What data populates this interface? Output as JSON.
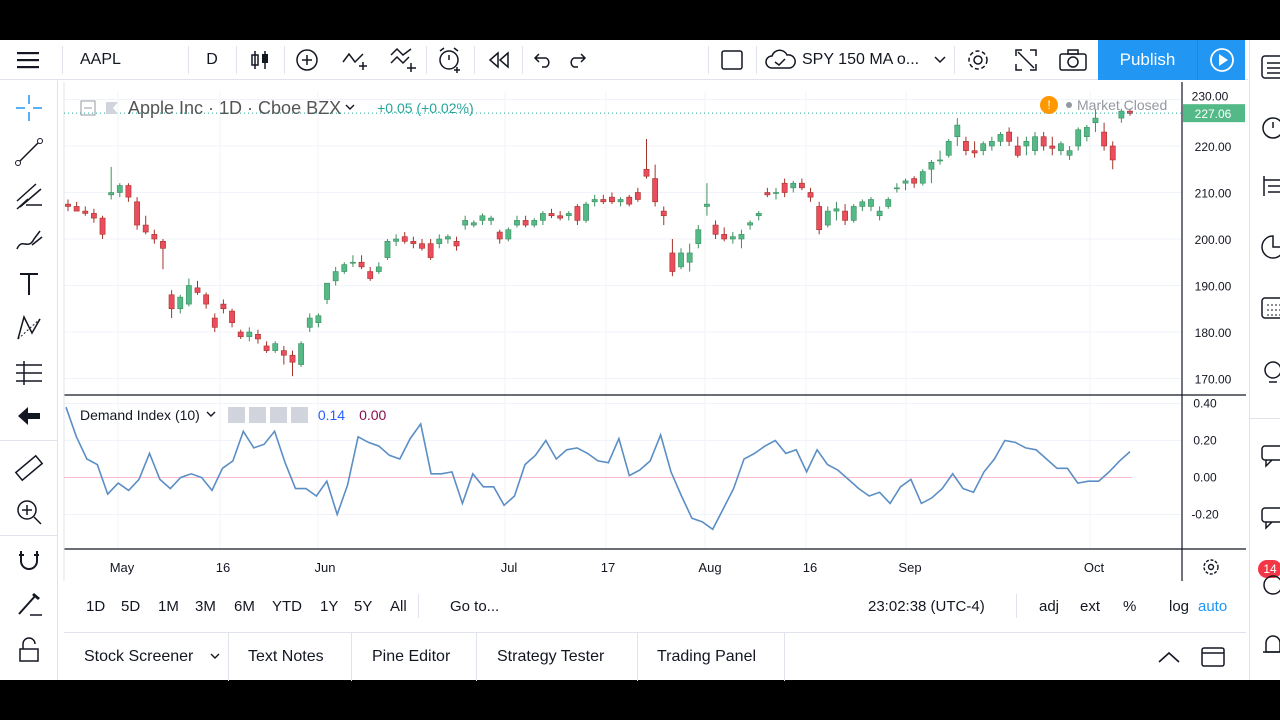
{
  "toolbar": {
    "symbol": "AAPL",
    "interval": "D",
    "compare_label": "SPY 150 MA o...",
    "publish_label": "Publish"
  },
  "legend": {
    "title": "Apple Inc · 1D · Cboe BZX",
    "change": "+0.05 (+0.02%)",
    "market_status": "Market Closed"
  },
  "indicator": {
    "name": "Demand Index (10)",
    "value1": "0.14",
    "value2": "0.00"
  },
  "price_axis": {
    "labels": [
      "230.00",
      "220.00",
      "210.00",
      "200.00",
      "190.00",
      "180.00",
      "170.00"
    ],
    "last_price": "227.06"
  },
  "indicator_axis": {
    "labels": [
      "0.40",
      "0.20",
      "0.00",
      "-0.20"
    ]
  },
  "time_axis": {
    "labels": [
      "May",
      "16",
      "Jun",
      "Jul",
      "17",
      "Aug",
      "16",
      "Sep",
      "Oct"
    ]
  },
  "range_bar": {
    "ranges": [
      "1D",
      "5D",
      "1M",
      "3M",
      "6M",
      "YTD",
      "1Y",
      "5Y",
      "All"
    ],
    "goto": "Go to...",
    "time": "23:02:38 (UTC-4)",
    "options": [
      "adj",
      "ext",
      "%",
      "log",
      "auto"
    ]
  },
  "bottom_tabs": [
    "Stock Screener",
    "Text Notes",
    "Pine Editor",
    "Strategy Tester",
    "Trading Panel"
  ],
  "right_badge": "14",
  "colors": {
    "up": "#26a69a",
    "down": "#ef5350",
    "up_fill": "#53b987",
    "down_fill": "#eb4d5c",
    "accent": "#2196f3",
    "indicator_line": "#5b8ec5"
  },
  "chart_data": {
    "type": "candlestick",
    "x_labels": [
      "May",
      "16",
      "Jun",
      "Jul",
      "17",
      "Aug",
      "16",
      "Sep",
      "Oct"
    ],
    "ylim": [
      168,
      232
    ],
    "candles": [
      [
        207.5,
        208.5,
        206,
        207
      ],
      [
        207,
        208,
        206,
        206
      ],
      [
        206,
        207,
        205,
        205.5
      ],
      [
        205.5,
        206.5,
        203.5,
        204.5
      ],
      [
        204.5,
        205,
        200,
        201
      ],
      [
        209.5,
        215.5,
        208.5,
        210
      ],
      [
        210,
        212,
        209,
        211.5
      ],
      [
        211.5,
        212,
        208,
        209
      ],
      [
        208,
        209,
        202,
        203
      ],
      [
        203,
        205,
        201,
        201.5
      ],
      [
        201,
        202,
        199,
        200
      ],
      [
        199.5,
        200,
        193.5,
        198
      ],
      [
        188,
        189,
        183,
        185
      ],
      [
        185,
        188,
        184,
        187.5
      ],
      [
        186,
        191.5,
        185.5,
        190
      ],
      [
        189.5,
        191,
        188,
        188.5
      ],
      [
        188,
        188.5,
        185,
        186
      ],
      [
        183,
        184,
        180,
        181
      ],
      [
        186,
        187,
        184,
        185
      ],
      [
        184.5,
        185,
        181,
        182
      ],
      [
        180,
        180.5,
        178.5,
        179
      ],
      [
        179,
        181,
        178,
        180
      ],
      [
        179.5,
        180.5,
        177.5,
        178.5
      ],
      [
        177,
        178,
        175.5,
        176
      ],
      [
        176,
        178,
        175.5,
        177.5
      ],
      [
        176,
        177,
        173,
        175
      ],
      [
        175,
        176,
        170.5,
        173.5
      ],
      [
        173,
        178,
        172.5,
        177.5
      ],
      [
        181,
        184,
        180,
        183
      ],
      [
        182,
        184,
        181,
        183.5
      ],
      [
        187,
        190.5,
        186,
        190.5
      ],
      [
        191,
        194,
        190,
        193
      ],
      [
        193,
        195,
        192.5,
        194.5
      ],
      [
        195,
        196.5,
        194,
        195
      ],
      [
        195,
        196.5,
        193.5,
        194
      ],
      [
        193,
        194,
        191,
        191.5
      ],
      [
        193,
        195,
        192.5,
        194
      ],
      [
        196,
        200,
        195.5,
        199.5
      ],
      [
        199.5,
        201,
        198.5,
        200
      ],
      [
        200.5,
        201.5,
        199,
        199.5
      ],
      [
        199.5,
        200.5,
        198,
        199
      ],
      [
        199,
        200,
        197.5,
        198
      ],
      [
        199,
        200,
        195.5,
        196
      ],
      [
        199,
        201,
        198,
        200
      ],
      [
        200,
        201,
        199,
        200.5
      ],
      [
        199.5,
        200.5,
        197.5,
        198.5
      ],
      [
        203,
        205,
        202,
        204
      ],
      [
        203,
        204,
        202.5,
        203.5
      ],
      [
        204,
        205.5,
        203,
        205
      ],
      [
        204,
        205,
        203,
        204.5
      ],
      [
        201.5,
        202,
        199,
        200
      ],
      [
        200,
        202.5,
        199.5,
        202
      ],
      [
        203,
        205,
        202.5,
        204
      ],
      [
        204,
        205,
        202.5,
        203
      ],
      [
        203,
        204.5,
        202.5,
        204
      ],
      [
        204,
        206,
        203,
        205.5
      ],
      [
        205.5,
        206.5,
        204.5,
        205
      ],
      [
        205,
        206,
        204,
        204.5
      ],
      [
        205,
        206,
        204,
        205.5
      ],
      [
        207,
        207.5,
        203,
        204
      ],
      [
        204,
        208,
        203.5,
        207.5
      ],
      [
        208,
        209.5,
        207,
        208.5
      ],
      [
        208.5,
        209.5,
        207.5,
        208
      ],
      [
        209,
        210,
        207.5,
        208
      ],
      [
        208,
        209,
        207,
        208.5
      ],
      [
        209,
        209.5,
        207,
        207.5
      ],
      [
        210,
        211,
        208,
        208.5
      ],
      [
        215,
        221.5,
        213,
        213.5
      ],
      [
        213,
        216,
        207,
        208
      ],
      [
        206,
        207,
        203,
        205
      ],
      [
        197,
        200,
        192,
        193
      ],
      [
        194,
        198,
        193.5,
        197
      ],
      [
        195,
        199,
        193,
        197
      ],
      [
        199,
        203,
        198,
        202
      ],
      [
        207,
        212,
        205,
        207.5
      ],
      [
        203,
        204,
        200,
        201
      ],
      [
        201,
        202.5,
        199.5,
        200
      ],
      [
        200,
        201.5,
        199,
        200.5
      ],
      [
        200,
        202,
        198,
        201
      ],
      [
        203,
        204,
        202,
        203.5
      ],
      [
        205,
        206,
        204,
        205.5
      ],
      [
        210,
        211,
        209,
        209.5
      ],
      [
        210,
        211,
        208.5,
        210
      ],
      [
        212,
        213,
        209,
        210
      ],
      [
        211,
        212.5,
        210,
        212
      ],
      [
        212,
        213,
        210.5,
        211
      ],
      [
        210,
        211,
        208,
        209
      ],
      [
        207,
        208,
        201,
        202
      ],
      [
        203,
        207,
        202.5,
        206
      ],
      [
        206,
        208,
        204,
        206.5
      ],
      [
        206,
        207.5,
        203,
        204
      ],
      [
        204,
        207.5,
        203.5,
        207
      ],
      [
        207,
        208.5,
        206,
        208
      ],
      [
        207,
        209,
        206,
        208.5
      ],
      [
        205,
        207,
        204,
        206
      ],
      [
        207,
        209,
        206.5,
        208.5
      ],
      [
        211,
        212,
        210,
        211
      ],
      [
        212,
        213,
        210.5,
        212.5
      ],
      [
        213,
        213.5,
        211,
        212
      ],
      [
        212,
        215,
        211.5,
        214.5
      ],
      [
        215,
        217,
        212,
        216.5
      ],
      [
        217,
        219,
        216,
        217
      ],
      [
        218,
        221.5,
        217.5,
        221
      ],
      [
        222,
        226,
        220,
        224.5
      ],
      [
        221,
        222,
        218,
        219
      ],
      [
        219,
        221,
        217.5,
        218.5
      ],
      [
        219,
        221,
        218,
        220.5
      ],
      [
        220,
        222,
        219,
        221
      ],
      [
        221,
        223,
        220,
        222.5
      ],
      [
        223,
        224,
        220,
        221
      ],
      [
        220,
        222,
        217.5,
        218
      ],
      [
        220,
        222,
        218,
        221
      ],
      [
        219,
        223,
        218,
        222
      ],
      [
        222,
        223,
        219,
        220
      ],
      [
        220,
        222,
        218,
        219.5
      ],
      [
        219,
        221,
        218,
        220.5
      ],
      [
        218,
        220,
        217,
        219
      ],
      [
        220,
        224,
        219,
        223.5
      ],
      [
        222,
        224.5,
        221,
        224
      ],
      [
        225,
        228,
        223,
        226
      ],
      [
        223,
        225,
        219,
        220
      ],
      [
        220,
        221,
        215,
        217
      ],
      [
        226,
        228,
        225,
        227.5
      ],
      [
        227.5,
        228,
        226.5,
        227
      ]
    ],
    "demand_index": [
      0.38,
      0.22,
      0.1,
      0.07,
      -0.09,
      -0.03,
      -0.07,
      -0.01,
      0.13,
      -0.01,
      -0.06,
      0.0,
      0.02,
      0.0,
      -0.07,
      0.05,
      0.09,
      0.25,
      0.16,
      0.18,
      0.25,
      0.08,
      -0.06,
      -0.06,
      -0.1,
      -0.02,
      -0.2,
      -0.04,
      0.22,
      0.19,
      0.17,
      0.12,
      0.1,
      0.21,
      0.29,
      0.02,
      0.02,
      0.03,
      -0.14,
      0.02,
      -0.05,
      -0.05,
      -0.15,
      -0.1,
      0.07,
      0.12,
      0.2,
      0.1,
      0.15,
      0.16,
      0.13,
      0.09,
      0.08,
      0.21,
      0.01,
      0.04,
      0.09,
      0.23,
      0.03,
      -0.1,
      -0.22,
      -0.24,
      -0.28,
      -0.17,
      -0.06,
      0.1,
      0.13,
      0.17,
      0.2,
      0.13,
      0.15,
      0.03,
      0.15,
      0.07,
      0.04,
      -0.01,
      -0.06,
      -0.1,
      -0.08,
      -0.14,
      -0.05,
      -0.01,
      -0.14,
      -0.11,
      -0.06,
      0.02,
      -0.06,
      -0.08,
      0.03,
      0.1,
      0.2,
      0.19,
      0.16,
      0.15,
      0.1,
      0.05,
      0.05,
      -0.03,
      -0.02,
      -0.02,
      0.03,
      0.09,
      0.14
    ]
  }
}
